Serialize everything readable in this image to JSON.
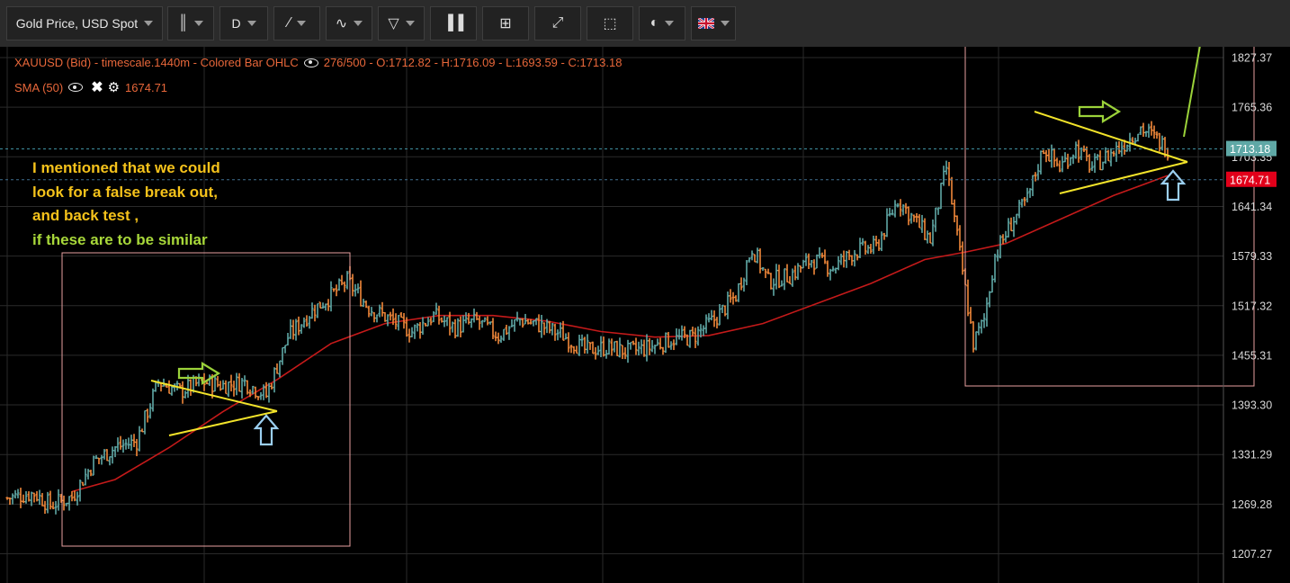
{
  "toolbar": {
    "symbol_label": "Gold Price, USD Spot",
    "period_label": "D",
    "icons": [
      "bar-style-icon",
      "period-dropdown",
      "draw-line-icon",
      "indicator-icon",
      "delete-icon",
      "volume-icon",
      "crosshair-icon",
      "fullscreen-icon",
      "fit-icon",
      "palette-icon",
      "flag-uk-icon"
    ]
  },
  "legend": {
    "main_line": "XAUUSD (Bid) - timescale.1440m - Colored Bar OHLC",
    "main_stats": "276/500 - O:1712.82 - H:1716.09 - L:1693.59 - C:1713.18",
    "sma_label": "SMA (50)",
    "sma_value": "1674.71"
  },
  "note": {
    "line1": "I mentioned that we could",
    "line2": "look for a false break out,",
    "line3": "and back test ,",
    "line4": "if these are to be similar"
  },
  "colors": {
    "up": "#5fa8a6",
    "down": "#f0883a",
    "sma": "#c41a1a",
    "trendline": "#f2e32a",
    "arrow_green": "#9bd23a",
    "arrow_blue": "#9bcff0",
    "box": "#e8a0a0",
    "grid": "#2a2a2a"
  },
  "chart_data": {
    "type": "ohlc",
    "series_name": "XAUUSD (Bid)",
    "y_ticks": [
      1827.37,
      1765.36,
      1703.35,
      1641.34,
      1579.33,
      1517.32,
      1455.31,
      1393.3,
      1331.29,
      1269.28,
      1207.27
    ],
    "ylim": [
      1195,
      1855
    ],
    "current_price": "1713.18",
    "sma_price": "1674.71",
    "grid": true,
    "anchors": [
      {
        "i": 0,
        "p": 1277
      },
      {
        "i": 10,
        "p": 1283
      },
      {
        "i": 16,
        "p": 1268
      },
      {
        "i": 24,
        "p": 1278
      },
      {
        "i": 32,
        "p": 1322
      },
      {
        "i": 40,
        "p": 1340
      },
      {
        "i": 48,
        "p": 1348
      },
      {
        "i": 56,
        "p": 1422
      },
      {
        "i": 64,
        "p": 1410
      },
      {
        "i": 72,
        "p": 1422
      },
      {
        "i": 80,
        "p": 1418
      },
      {
        "i": 88,
        "p": 1422
      },
      {
        "i": 96,
        "p": 1405
      },
      {
        "i": 104,
        "p": 1478
      },
      {
        "i": 112,
        "p": 1508
      },
      {
        "i": 120,
        "p": 1530
      },
      {
        "i": 126,
        "p": 1548
      },
      {
        "i": 134,
        "p": 1515
      },
      {
        "i": 142,
        "p": 1500
      },
      {
        "i": 150,
        "p": 1485
      },
      {
        "i": 158,
        "p": 1505
      },
      {
        "i": 166,
        "p": 1490
      },
      {
        "i": 174,
        "p": 1498
      },
      {
        "i": 182,
        "p": 1480
      },
      {
        "i": 190,
        "p": 1500
      },
      {
        "i": 198,
        "p": 1492
      },
      {
        "i": 206,
        "p": 1480
      },
      {
        "i": 214,
        "p": 1462
      },
      {
        "i": 222,
        "p": 1465
      },
      {
        "i": 230,
        "p": 1460
      },
      {
        "i": 238,
        "p": 1465
      },
      {
        "i": 246,
        "p": 1475
      },
      {
        "i": 254,
        "p": 1478
      },
      {
        "i": 262,
        "p": 1500
      },
      {
        "i": 270,
        "p": 1530
      },
      {
        "i": 276,
        "p": 1590
      },
      {
        "i": 282,
        "p": 1548
      },
      {
        "i": 290,
        "p": 1555
      },
      {
        "i": 298,
        "p": 1575
      },
      {
        "i": 306,
        "p": 1565
      },
      {
        "i": 314,
        "p": 1585
      },
      {
        "i": 322,
        "p": 1590
      },
      {
        "i": 330,
        "p": 1650
      },
      {
        "i": 336,
        "p": 1625
      },
      {
        "i": 342,
        "p": 1600
      },
      {
        "i": 348,
        "p": 1690
      },
      {
        "i": 354,
        "p": 1560
      },
      {
        "i": 358,
        "p": 1470
      },
      {
        "i": 362,
        "p": 1500
      },
      {
        "i": 366,
        "p": 1580
      },
      {
        "i": 372,
        "p": 1620
      },
      {
        "i": 378,
        "p": 1650
      },
      {
        "i": 384,
        "p": 1715
      },
      {
        "i": 390,
        "p": 1690
      },
      {
        "i": 396,
        "p": 1715
      },
      {
        "i": 402,
        "p": 1690
      },
      {
        "i": 408,
        "p": 1705
      },
      {
        "i": 414,
        "p": 1720
      },
      {
        "i": 420,
        "p": 1740
      },
      {
        "i": 426,
        "p": 1725
      },
      {
        "i": 430,
        "p": 1713
      }
    ],
    "sma_points": [
      {
        "i": 24,
        "p": 1285
      },
      {
        "i": 40,
        "p": 1300
      },
      {
        "i": 60,
        "p": 1340
      },
      {
        "i": 80,
        "p": 1385
      },
      {
        "i": 100,
        "p": 1425
      },
      {
        "i": 120,
        "p": 1470
      },
      {
        "i": 140,
        "p": 1495
      },
      {
        "i": 160,
        "p": 1505
      },
      {
        "i": 180,
        "p": 1505
      },
      {
        "i": 200,
        "p": 1498
      },
      {
        "i": 220,
        "p": 1485
      },
      {
        "i": 240,
        "p": 1478
      },
      {
        "i": 260,
        "p": 1480
      },
      {
        "i": 280,
        "p": 1495
      },
      {
        "i": 300,
        "p": 1520
      },
      {
        "i": 320,
        "p": 1545
      },
      {
        "i": 340,
        "p": 1575
      },
      {
        "i": 356,
        "p": 1585
      },
      {
        "i": 370,
        "p": 1595
      },
      {
        "i": 390,
        "p": 1625
      },
      {
        "i": 410,
        "p": 1655
      },
      {
        "i": 430,
        "p": 1680
      }
    ]
  }
}
